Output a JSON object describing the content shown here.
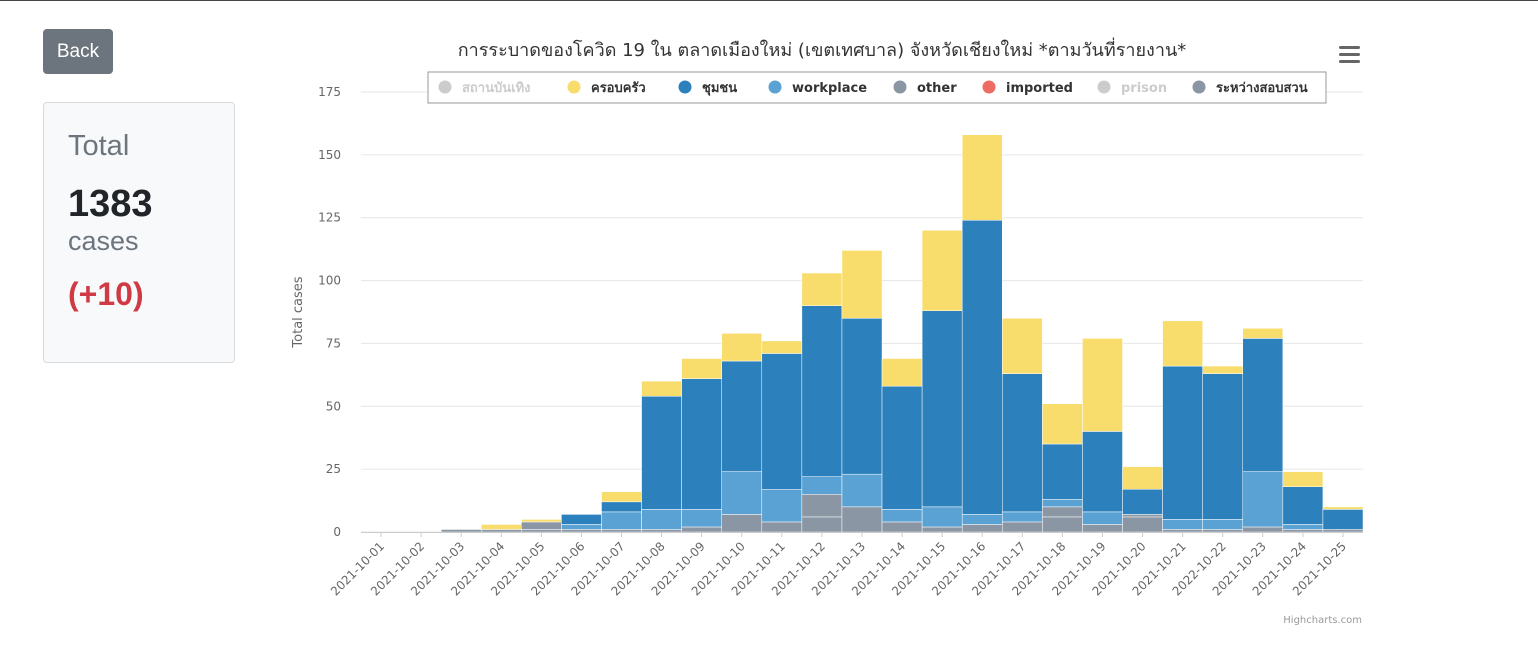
{
  "back_label": "Back",
  "summary": {
    "title": "Total",
    "total": "1383",
    "unit": "cases",
    "delta": "(+10)"
  },
  "credit": "Highcharts.com",
  "menu_icon": "hamburger-menu-icon",
  "chart_data": {
    "type": "bar",
    "stacked": true,
    "title": "การระบาดของโควิด 19 ใน ตลาดเมืองใหม่ (เขตเทศบาล) จังหวัดเชียงใหม่ *ตามวันที่รายงาน*",
    "xlabel": "",
    "ylabel": "Total cases",
    "ylim": [
      0,
      175
    ],
    "yticks": [
      0,
      25,
      50,
      75,
      100,
      125,
      150,
      175
    ],
    "grid": true,
    "legend_position": "top",
    "categories": [
      "2021-10-01",
      "2021-10-02",
      "2021-10-03",
      "2021-10-04",
      "2021-10-05",
      "2021-10-06",
      "2021-10-07",
      "2021-10-08",
      "2021-10-09",
      "2021-10-10",
      "2021-10-11",
      "2021-10-12",
      "2021-10-13",
      "2021-10-14",
      "2021-10-15",
      "2021-10-16",
      "2021-10-17",
      "2021-10-18",
      "2021-10-19",
      "2021-10-20",
      "2021-10-21",
      "2022-10-22",
      "2021-10-23",
      "2021-10-24",
      "2021-10-25"
    ],
    "series": [
      {
        "name": "สถานบันเทิง",
        "color": "#cccccc",
        "visible": false,
        "values": [
          0,
          0,
          0,
          0,
          0,
          0,
          0,
          0,
          0,
          0,
          0,
          0,
          0,
          0,
          0,
          0,
          0,
          0,
          0,
          0,
          0,
          0,
          0,
          0,
          0
        ]
      },
      {
        "name": "other",
        "color": "#8a96a3",
        "visible": true,
        "values": [
          0,
          0,
          0,
          0,
          1,
          0,
          0,
          1,
          2,
          7,
          4,
          6,
          10,
          4,
          2,
          3,
          4,
          6,
          3,
          6,
          1,
          1,
          2,
          1,
          1
        ]
      },
      {
        "name": "ระหว่างสอบสวน",
        "color": "#8a96a3",
        "visible": true,
        "values": [
          0,
          0,
          1,
          1,
          3,
          1,
          1,
          0,
          0,
          0,
          0,
          9,
          0,
          0,
          0,
          0,
          0,
          4,
          0,
          1,
          0,
          0,
          0,
          0,
          0
        ]
      },
      {
        "name": "workplace",
        "color": "#5ba2d4",
        "visible": true,
        "values": [
          0,
          0,
          0,
          0,
          0,
          2,
          7,
          8,
          7,
          17,
          13,
          7,
          13,
          5,
          8,
          4,
          4,
          3,
          5,
          0,
          4,
          4,
          22,
          2,
          0
        ]
      },
      {
        "name": "ชุมชน",
        "color": "#2c80bb",
        "visible": true,
        "values": [
          0,
          0,
          0,
          0,
          0,
          4,
          4,
          45,
          52,
          44,
          54,
          68,
          62,
          49,
          78,
          117,
          55,
          22,
          32,
          10,
          61,
          58,
          53,
          15,
          8
        ]
      },
      {
        "name": "ครอบครัว",
        "color": "#f8dc6c",
        "visible": true,
        "values": [
          0,
          0,
          0,
          2,
          1,
          0,
          4,
          6,
          8,
          11,
          5,
          13,
          27,
          11,
          32,
          34,
          22,
          16,
          37,
          9,
          18,
          3,
          4,
          6,
          1
        ]
      },
      {
        "name": "imported",
        "color": "#ee6b64",
        "visible": true,
        "values": [
          0,
          0,
          0,
          0,
          0,
          0,
          0,
          0,
          0,
          0,
          0,
          0,
          0,
          0,
          0,
          0,
          0,
          0,
          0,
          0,
          0,
          0,
          0,
          0,
          0
        ]
      },
      {
        "name": "prison",
        "color": "#cccccc",
        "visible": false,
        "values": [
          0,
          0,
          0,
          0,
          0,
          0,
          0,
          0,
          0,
          0,
          0,
          0,
          0,
          0,
          0,
          0,
          0,
          0,
          0,
          0,
          0,
          0,
          0,
          0,
          0
        ]
      }
    ],
    "legend_order": [
      "สถานบันเทิง",
      "ครอบครัว",
      "ชุมชน",
      "workplace",
      "other",
      "imported",
      "prison",
      "ระหว่างสอบสวน"
    ]
  }
}
